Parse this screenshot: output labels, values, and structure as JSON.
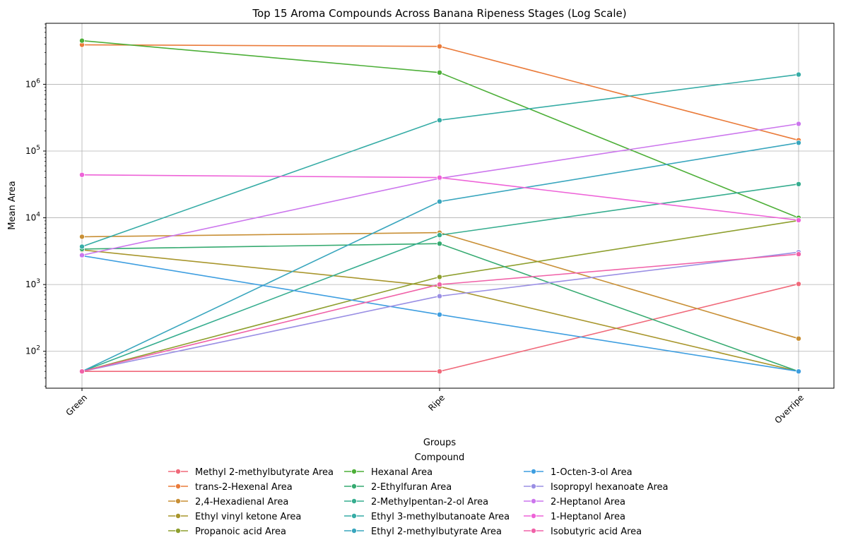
{
  "chart_data": {
    "type": "line",
    "title": "Top 15 Aroma Compounds Across Banana Ripeness Stages (Log Scale)",
    "xlabel": "Groups",
    "ylabel": "Mean Area",
    "categories": [
      "Green",
      "Ripe",
      "Overripe"
    ],
    "y_scale": "log",
    "ylim": [
      28,
      8200000
    ],
    "y_ticks": [
      {
        "value": 100,
        "base": "10",
        "exp": "2"
      },
      {
        "value": 1000,
        "base": "10",
        "exp": "3"
      },
      {
        "value": 10000,
        "base": "10",
        "exp": "4"
      },
      {
        "value": 100000,
        "base": "10",
        "exp": "5"
      },
      {
        "value": 1000000,
        "base": "10",
        "exp": "6"
      }
    ],
    "grid": true,
    "legend": {
      "title": "Compound",
      "placement": "below",
      "columns": 3
    },
    "series": [
      {
        "name": "Methyl 2-methylbutyrate Area",
        "color": "#f0697a",
        "values": [
          50,
          50,
          1020
        ]
      },
      {
        "name": "trans-2-Hexenal Area",
        "color": "#ea7b3a",
        "values": [
          3900000,
          3700000,
          145000
        ]
      },
      {
        "name": "2,4-Hexadienal Area",
        "color": "#c88f35",
        "values": [
          5200,
          6000,
          155
        ]
      },
      {
        "name": "Ethyl vinyl ketone Area",
        "color": "#a8962c",
        "values": [
          3300,
          930,
          50
        ]
      },
      {
        "name": "Propanoic acid Area",
        "color": "#8e9f2e",
        "values": [
          50,
          1300,
          9100
        ]
      },
      {
        "name": "Hexanal Area",
        "color": "#4daf38",
        "values": [
          4500000,
          1500000,
          10000
        ]
      },
      {
        "name": "2-Ethylfuran Area",
        "color": "#35aa70",
        "values": [
          3400,
          4100,
          50
        ]
      },
      {
        "name": "2-Methylpentan-2-ol Area",
        "color": "#36ad8f",
        "values": [
          50,
          5500,
          32000
        ]
      },
      {
        "name": "Ethyl 3-methylbutanoate Area",
        "color": "#36aca6",
        "values": [
          3700,
          290000,
          1400000
        ]
      },
      {
        "name": "Ethyl 2-methylbutyrate Area",
        "color": "#39a6be",
        "values": [
          50,
          17500,
          133000
        ]
      },
      {
        "name": "1-Octen-3-ol Area",
        "color": "#3e9ee0",
        "values": [
          2700,
          355,
          50
        ]
      },
      {
        "name": "Isopropyl hexanoate Area",
        "color": "#9a8fe4",
        "values": [
          50,
          670,
          3050
        ]
      },
      {
        "name": "2-Heptanol Area",
        "color": "#cc76ed",
        "values": [
          2750,
          39000,
          255000
        ]
      },
      {
        "name": "1-Heptanol Area",
        "color": "#ee63d8",
        "values": [
          44000,
          40000,
          9200
        ]
      },
      {
        "name": "Isobutyric acid Area",
        "color": "#f062a8",
        "values": [
          50,
          1000,
          2850
        ]
      }
    ]
  }
}
